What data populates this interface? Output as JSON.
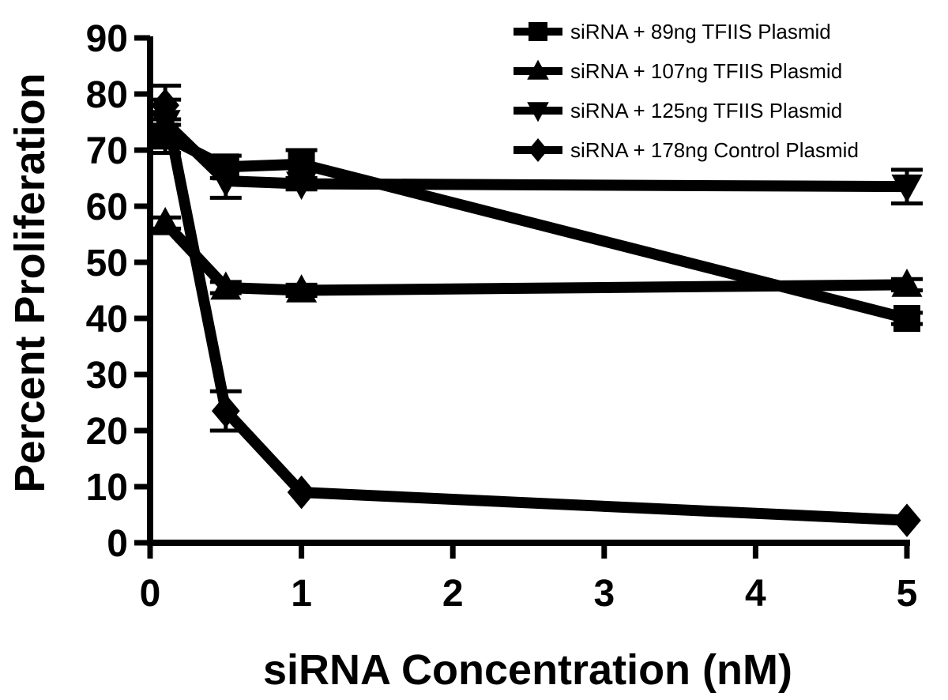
{
  "chart_data": {
    "type": "line",
    "title": "",
    "xlabel": "siRNA Concentration (nM)",
    "ylabel": "Percent Proliferation",
    "xlim": [
      0,
      5
    ],
    "ylim": [
      0,
      90
    ],
    "x_ticks": [
      0,
      1,
      2,
      3,
      4,
      5
    ],
    "y_ticks": [
      0,
      10,
      20,
      30,
      40,
      50,
      60,
      70,
      80,
      90
    ],
    "grid": false,
    "legend_position": "top-right",
    "x": [
      0.1,
      0.5,
      1,
      5
    ],
    "series": [
      {
        "name": "siRNA + 89ng TFIIS Plasmid",
        "marker": "square",
        "values": [
          72.5,
          67,
          67.5,
          40
        ],
        "errors": [
          3,
          2,
          2.5,
          1
        ]
      },
      {
        "name": "siRNA + 107ng TFIIS Plasmid",
        "marker": "triangle-up",
        "values": [
          57,
          45.5,
          45,
          46
        ],
        "errors": [
          1,
          1,
          1,
          1
        ]
      },
      {
        "name": "siRNA + 125ng TFIIS Plasmid",
        "marker": "triangle-down",
        "values": [
          75,
          64.5,
          64,
          63.5
        ],
        "errors": [
          4,
          3,
          1,
          3
        ]
      },
      {
        "name": "siRNA + 178ng Control Plasmid",
        "marker": "diamond",
        "values": [
          78,
          23.5,
          9,
          4
        ],
        "errors": [
          3.5,
          3.5,
          0.5,
          0.5
        ]
      }
    ]
  }
}
